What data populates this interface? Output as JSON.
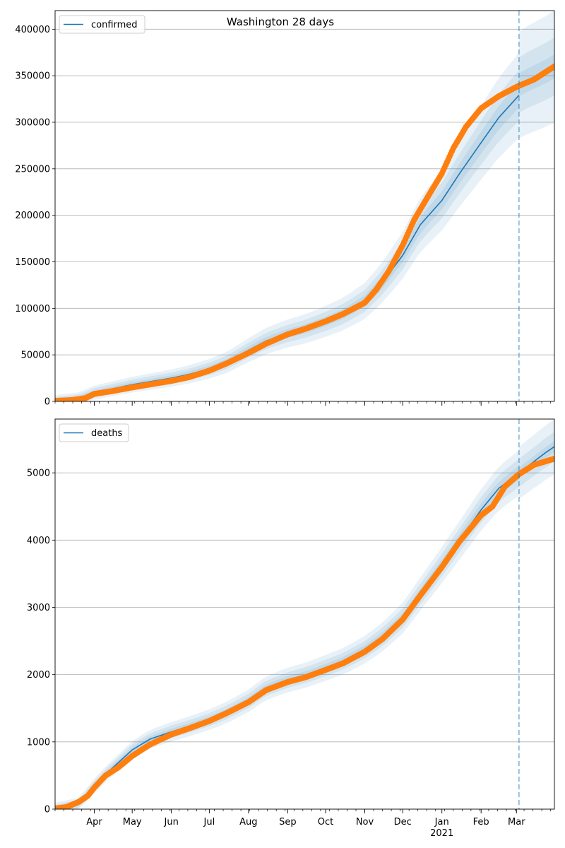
{
  "title": "Washington 28 days",
  "colors": {
    "model": "#1f77b4",
    "observed": "#ff7f0e",
    "band": "#1f77b4",
    "grid": "#b0b0b0",
    "marker_line": "#1f77b4"
  },
  "x_axis": {
    "date_range": [
      "2020-03-01",
      "2021-03-31"
    ],
    "month_ticks": [
      {
        "date": "2020-04-01",
        "label": "Apr"
      },
      {
        "date": "2020-05-01",
        "label": "May"
      },
      {
        "date": "2020-06-01",
        "label": "Jun"
      },
      {
        "date": "2020-07-01",
        "label": "Jul"
      },
      {
        "date": "2020-08-01",
        "label": "Aug"
      },
      {
        "date": "2020-09-01",
        "label": "Sep"
      },
      {
        "date": "2020-10-01",
        "label": "Oct"
      },
      {
        "date": "2020-11-01",
        "label": "Nov"
      },
      {
        "date": "2020-12-01",
        "label": "Dec"
      },
      {
        "date": "2021-01-01",
        "label": "Jan"
      },
      {
        "date": "2021-02-01",
        "label": "Feb"
      },
      {
        "date": "2021-03-01",
        "label": "Mar"
      }
    ],
    "year_label": {
      "date": "2021-01-01",
      "label": "2021"
    },
    "forecast_start": "2021-03-03"
  },
  "chart_data": [
    {
      "type": "line",
      "legend": "confirmed",
      "legend_position": "top-left",
      "grid": "horizontal",
      "ylim": [
        0,
        420000
      ],
      "yticks": [
        0,
        50000,
        100000,
        150000,
        200000,
        250000,
        300000,
        350000,
        400000
      ],
      "model": [
        [
          "2020-03-01",
          500
        ],
        [
          "2020-03-20",
          3000
        ],
        [
          "2020-04-01",
          9500
        ],
        [
          "2020-04-15",
          13500
        ],
        [
          "2020-05-01",
          18000
        ],
        [
          "2020-06-01",
          25000
        ],
        [
          "2020-06-15",
          29000
        ],
        [
          "2020-07-01",
          35000
        ],
        [
          "2020-07-15",
          42000
        ],
        [
          "2020-08-01",
          55000
        ],
        [
          "2020-08-15",
          65000
        ],
        [
          "2020-09-01",
          73000
        ],
        [
          "2020-09-15",
          78000
        ],
        [
          "2020-10-01",
          86000
        ],
        [
          "2020-10-15",
          94000
        ],
        [
          "2020-11-01",
          108000
        ],
        [
          "2020-11-15",
          128000
        ],
        [
          "2020-12-01",
          157000
        ],
        [
          "2020-12-15",
          190000
        ],
        [
          "2021-01-01",
          216000
        ],
        [
          "2021-01-15",
          245000
        ],
        [
          "2021-02-01",
          278000
        ],
        [
          "2021-02-15",
          305000
        ],
        [
          "2021-03-03",
          329000
        ]
      ],
      "forecast": [
        [
          "2021-03-03",
          340000
        ],
        [
          "2021-03-10",
          345500
        ],
        [
          "2021-03-17",
          350000
        ],
        [
          "2021-03-24",
          354500
        ],
        [
          "2021-03-31",
          360000
        ]
      ],
      "band_widths": [
        {
          "level": 1,
          "spread": 0.035
        },
        {
          "level": 2,
          "spread": 0.07
        },
        {
          "level": 3,
          "spread": 0.12
        }
      ],
      "forecast_band_widths": [
        {
          "level": 1,
          "spread": 0.03
        },
        {
          "level": 2,
          "spread": 0.075
        },
        {
          "level": 3,
          "spread": 0.15
        }
      ],
      "observed": [
        [
          "2020-03-01",
          500
        ],
        [
          "2020-03-15",
          1500
        ],
        [
          "2020-03-25",
          3500
        ],
        [
          "2020-04-01",
          8000
        ],
        [
          "2020-04-15",
          11000
        ],
        [
          "2020-05-01",
          15000
        ],
        [
          "2020-06-01",
          22000
        ],
        [
          "2020-06-15",
          26000
        ],
        [
          "2020-07-01",
          33000
        ],
        [
          "2020-07-15",
          41000
        ],
        [
          "2020-08-01",
          52000
        ],
        [
          "2020-08-15",
          62000
        ],
        [
          "2020-09-01",
          72000
        ],
        [
          "2020-09-15",
          78000
        ],
        [
          "2020-10-01",
          86000
        ],
        [
          "2020-10-15",
          94000
        ],
        [
          "2020-11-01",
          106000
        ],
        [
          "2020-11-10",
          120000
        ],
        [
          "2020-11-20",
          140000
        ],
        [
          "2020-12-01",
          168000
        ],
        [
          "2020-12-10",
          195000
        ],
        [
          "2020-12-20",
          218000
        ],
        [
          "2021-01-01",
          245000
        ],
        [
          "2021-01-10",
          272000
        ],
        [
          "2021-01-20",
          295000
        ],
        [
          "2021-02-01",
          315000
        ],
        [
          "2021-02-15",
          328000
        ],
        [
          "2021-03-01",
          338000
        ],
        [
          "2021-03-15",
          346000
        ],
        [
          "2021-03-31",
          360000
        ]
      ]
    },
    {
      "type": "line",
      "legend": "deaths",
      "legend_position": "top-left",
      "grid": "horizontal",
      "ylim": [
        0,
        5800
      ],
      "yticks": [
        0,
        1000,
        2000,
        3000,
        4000,
        5000
      ],
      "model": [
        [
          "2020-03-01",
          10
        ],
        [
          "2020-03-20",
          80
        ],
        [
          "2020-04-01",
          350
        ],
        [
          "2020-04-10",
          520
        ],
        [
          "2020-05-01",
          880
        ],
        [
          "2020-05-15",
          1040
        ],
        [
          "2020-06-01",
          1150
        ],
        [
          "2020-06-15",
          1230
        ],
        [
          "2020-07-01",
          1330
        ],
        [
          "2020-07-15",
          1440
        ],
        [
          "2020-08-01",
          1610
        ],
        [
          "2020-08-15",
          1800
        ],
        [
          "2020-09-01",
          1920
        ],
        [
          "2020-09-15",
          1990
        ],
        [
          "2020-10-01",
          2100
        ],
        [
          "2020-10-15",
          2200
        ],
        [
          "2020-11-01",
          2370
        ],
        [
          "2020-11-15",
          2560
        ],
        [
          "2020-12-01",
          2840
        ],
        [
          "2020-12-15",
          3200
        ],
        [
          "2021-01-01",
          3630
        ],
        [
          "2021-01-15",
          4000
        ],
        [
          "2021-02-01",
          4450
        ],
        [
          "2021-02-15",
          4770
        ],
        [
          "2021-03-03",
          5000
        ]
      ],
      "forecast": [
        [
          "2021-03-03",
          5000
        ],
        [
          "2021-03-10",
          5100
        ],
        [
          "2021-03-17",
          5200
        ],
        [
          "2021-03-24",
          5300
        ],
        [
          "2021-03-31",
          5390
        ]
      ],
      "band_widths": [
        {
          "level": 1,
          "spread": 0.015
        },
        {
          "level": 2,
          "spread": 0.03
        },
        {
          "level": 3,
          "spread": 0.05
        }
      ],
      "forecast_band_widths": [
        {
          "level": 1,
          "spread": 0.01
        },
        {
          "level": 2,
          "spread": 0.03
        },
        {
          "level": 3,
          "spread": 0.06
        }
      ],
      "observed": [
        [
          "2020-03-01",
          10
        ],
        [
          "2020-03-10",
          30
        ],
        [
          "2020-03-20",
          110
        ],
        [
          "2020-03-27",
          200
        ],
        [
          "2020-04-01",
          320
        ],
        [
          "2020-04-10",
          500
        ],
        [
          "2020-04-20",
          620
        ],
        [
          "2020-05-01",
          790
        ],
        [
          "2020-05-15",
          960
        ],
        [
          "2020-06-01",
          1110
        ],
        [
          "2020-06-15",
          1200
        ],
        [
          "2020-07-01",
          1310
        ],
        [
          "2020-07-15",
          1430
        ],
        [
          "2020-08-01",
          1590
        ],
        [
          "2020-08-15",
          1770
        ],
        [
          "2020-09-01",
          1890
        ],
        [
          "2020-09-15",
          1960
        ],
        [
          "2020-10-01",
          2070
        ],
        [
          "2020-10-15",
          2170
        ],
        [
          "2020-11-01",
          2340
        ],
        [
          "2020-11-15",
          2530
        ],
        [
          "2020-12-01",
          2820
        ],
        [
          "2020-12-15",
          3180
        ],
        [
          "2021-01-01",
          3600
        ],
        [
          "2021-01-15",
          3980
        ],
        [
          "2021-02-01",
          4370
        ],
        [
          "2021-02-10",
          4500
        ],
        [
          "2021-02-20",
          4800
        ],
        [
          "2021-03-03",
          4980
        ],
        [
          "2021-03-15",
          5120
        ],
        [
          "2021-03-31",
          5210
        ]
      ]
    }
  ]
}
